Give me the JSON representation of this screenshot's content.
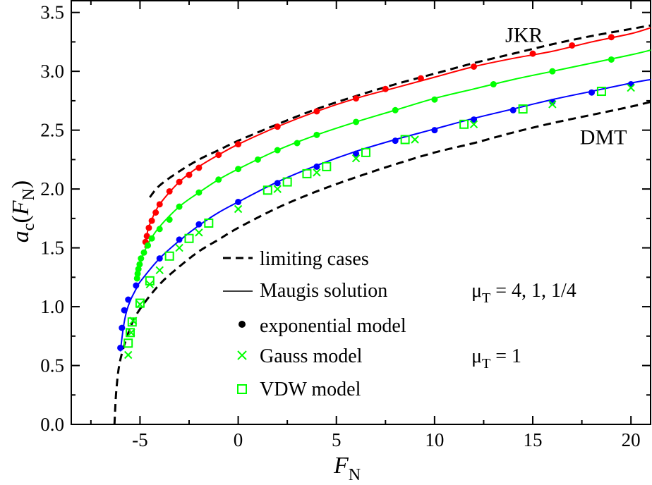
{
  "chart_data": {
    "type": "line",
    "title": "",
    "xlabel": {
      "main": "F",
      "sub": "N"
    },
    "ylabel": {
      "main": "a",
      "sub": "c",
      "arg_main": "F",
      "arg_sub": "N"
    },
    "xlim": [
      -8.5,
      21
    ],
    "ylim": [
      0.0,
      3.6
    ],
    "xticks": [
      -5,
      0,
      5,
      10,
      15,
      20
    ],
    "xtick_labels": [
      "-5",
      "0",
      "5",
      "10",
      "15",
      "20"
    ],
    "yticks": [
      0.0,
      0.5,
      1.0,
      1.5,
      2.0,
      2.5,
      3.0,
      3.5
    ],
    "ytick_labels": [
      "0.0",
      "0.5",
      "1.0",
      "1.5",
      "2.0",
      "2.5",
      "3.0",
      "3.5"
    ],
    "colors": {
      "red": "#ff0000",
      "green": "#00ff00",
      "blue": "#0000ff",
      "black": "#000000"
    },
    "annotations": [
      {
        "text": "JKR",
        "x": 13.6,
        "y": 3.25
      },
      {
        "text": "DMT",
        "x": 17.4,
        "y": 2.38
      }
    ],
    "limiting_curves": [
      {
        "name": "JKR",
        "points": [
          [
            -4.5,
            1.93
          ],
          [
            -4,
            2.03
          ],
          [
            -3,
            2.15
          ],
          [
            -2,
            2.25
          ],
          [
            -1,
            2.33
          ],
          [
            0,
            2.41
          ],
          [
            2,
            2.55
          ],
          [
            4,
            2.68
          ],
          [
            6,
            2.79
          ],
          [
            8,
            2.89
          ],
          [
            10,
            2.98
          ],
          [
            12,
            3.07
          ],
          [
            14,
            3.15
          ],
          [
            16,
            3.23
          ],
          [
            18,
            3.3
          ],
          [
            20,
            3.36
          ],
          [
            21,
            3.39
          ]
        ]
      },
      {
        "name": "DMT",
        "points": [
          [
            -6.3,
            0.0
          ],
          [
            -6.2,
            0.3
          ],
          [
            -6.0,
            0.55
          ],
          [
            -5.5,
            0.82
          ],
          [
            -5,
            0.98
          ],
          [
            -4,
            1.19
          ],
          [
            -3,
            1.34
          ],
          [
            -2,
            1.47
          ],
          [
            -1,
            1.57
          ],
          [
            0,
            1.67
          ],
          [
            2,
            1.84
          ],
          [
            4,
            1.98
          ],
          [
            6,
            2.1
          ],
          [
            8,
            2.21
          ],
          [
            10,
            2.31
          ],
          [
            12,
            2.39
          ],
          [
            14,
            2.48
          ],
          [
            16,
            2.56
          ],
          [
            18,
            2.63
          ],
          [
            20,
            2.7
          ],
          [
            21,
            2.74
          ]
        ]
      }
    ],
    "series": [
      {
        "name": "mu_T = 4",
        "color": "red",
        "curve": [
          [
            -4.75,
            1.5
          ],
          [
            -4.6,
            1.65
          ],
          [
            -4.4,
            1.74
          ],
          [
            -4,
            1.87
          ],
          [
            -3,
            2.06
          ],
          [
            -2,
            2.19
          ],
          [
            -1,
            2.29
          ],
          [
            0,
            2.38
          ],
          [
            2,
            2.53
          ],
          [
            4,
            2.66
          ],
          [
            6,
            2.77
          ],
          [
            8,
            2.86
          ],
          [
            10,
            2.95
          ],
          [
            12,
            3.04
          ],
          [
            14,
            3.11
          ],
          [
            16,
            3.17
          ],
          [
            18,
            3.25
          ],
          [
            20,
            3.32
          ],
          [
            21,
            3.37
          ]
        ],
        "exponential": [
          [
            -4.72,
            1.55
          ],
          [
            -4.65,
            1.6
          ],
          [
            -4.55,
            1.67
          ],
          [
            -4.4,
            1.73
          ],
          [
            -4.2,
            1.8
          ],
          [
            -4.0,
            1.87
          ],
          [
            -3.5,
            1.98
          ],
          [
            -3,
            2.06
          ],
          [
            -2.5,
            2.12
          ],
          [
            -2,
            2.18
          ],
          [
            -1,
            2.29
          ],
          [
            0,
            2.38
          ],
          [
            2,
            2.53
          ],
          [
            4,
            2.66
          ],
          [
            6,
            2.77
          ],
          [
            7.5,
            2.85
          ],
          [
            9.3,
            2.94
          ],
          [
            12,
            3.04
          ],
          [
            15,
            3.15
          ],
          [
            17,
            3.22
          ],
          [
            19,
            3.29
          ]
        ]
      },
      {
        "name": "mu_T = 1",
        "color": "green",
        "curve": [
          [
            -5.2,
            1.22
          ],
          [
            -5.1,
            1.3
          ],
          [
            -5.0,
            1.37
          ],
          [
            -4.8,
            1.46
          ],
          [
            -4.5,
            1.56
          ],
          [
            -4,
            1.68
          ],
          [
            -3,
            1.85
          ],
          [
            -2,
            1.97
          ],
          [
            -1,
            2.08
          ],
          [
            0,
            2.17
          ],
          [
            2,
            2.33
          ],
          [
            4,
            2.46
          ],
          [
            6,
            2.57
          ],
          [
            8,
            2.67
          ],
          [
            10,
            2.77
          ],
          [
            12,
            2.85
          ],
          [
            14,
            2.93
          ],
          [
            16,
            3.0
          ],
          [
            18,
            3.07
          ],
          [
            20,
            3.14
          ],
          [
            21,
            3.18
          ]
        ],
        "exponential": [
          [
            -5.15,
            1.24
          ],
          [
            -5.12,
            1.28
          ],
          [
            -5.08,
            1.32
          ],
          [
            -5.02,
            1.36
          ],
          [
            -4.95,
            1.41
          ],
          [
            -4.8,
            1.46
          ],
          [
            -4.6,
            1.52
          ],
          [
            -4.4,
            1.58
          ],
          [
            -4.0,
            1.66
          ],
          [
            -3.5,
            1.74
          ],
          [
            -3,
            1.85
          ],
          [
            -2,
            1.97
          ],
          [
            -1,
            2.08
          ],
          [
            0,
            2.17
          ],
          [
            1,
            2.25
          ],
          [
            2,
            2.33
          ],
          [
            3,
            2.39
          ],
          [
            4,
            2.46
          ],
          [
            6,
            2.57
          ],
          [
            8,
            2.67
          ],
          [
            10,
            2.76
          ],
          [
            13,
            2.89
          ],
          [
            16,
            3.0
          ],
          [
            19,
            3.1
          ]
        ]
      },
      {
        "name": "mu_T = 1/4",
        "color": "blue",
        "curve": [
          [
            -6.0,
            0.62
          ],
          [
            -5.85,
            0.82
          ],
          [
            -5.7,
            0.95
          ],
          [
            -5.5,
            1.05
          ],
          [
            -5.2,
            1.15
          ],
          [
            -5,
            1.21
          ],
          [
            -4,
            1.41
          ],
          [
            -3,
            1.56
          ],
          [
            -2,
            1.69
          ],
          [
            -1,
            1.8
          ],
          [
            0,
            1.89
          ],
          [
            2,
            2.06
          ],
          [
            4,
            2.2
          ],
          [
            6,
            2.32
          ],
          [
            8,
            2.42
          ],
          [
            10,
            2.51
          ],
          [
            12,
            2.6
          ],
          [
            14,
            2.68
          ],
          [
            16,
            2.76
          ],
          [
            18,
            2.83
          ],
          [
            20,
            2.9
          ],
          [
            21,
            2.93
          ]
        ],
        "exponential": [
          [
            -6.0,
            0.65
          ],
          [
            -5.92,
            0.82
          ],
          [
            -5.8,
            0.97
          ],
          [
            -5.6,
            1.06
          ],
          [
            -5.2,
            1.18
          ],
          [
            -4,
            1.41
          ],
          [
            -3,
            1.57
          ],
          [
            -2,
            1.7
          ],
          [
            0,
            1.89
          ],
          [
            2,
            2.05
          ],
          [
            4,
            2.19
          ],
          [
            6,
            2.3
          ],
          [
            8,
            2.41
          ],
          [
            10,
            2.5
          ],
          [
            12,
            2.59
          ],
          [
            14,
            2.67
          ],
          [
            16,
            2.74
          ],
          [
            18,
            2.82
          ],
          [
            20,
            2.89
          ]
        ]
      }
    ],
    "gauss_mu1": [
      [
        -5.6,
        0.59
      ],
      [
        -5.45,
        0.78
      ],
      [
        -5.35,
        0.88
      ],
      [
        -5.0,
        1.02
      ],
      [
        -4.5,
        1.19
      ],
      [
        -4.0,
        1.31
      ],
      [
        -3.0,
        1.5
      ],
      [
        -2.0,
        1.63
      ],
      [
        0,
        1.83
      ],
      [
        2,
        2.0
      ],
      [
        4,
        2.14
      ],
      [
        6,
        2.26
      ],
      [
        9,
        2.42
      ],
      [
        12,
        2.55
      ],
      [
        16,
        2.72
      ],
      [
        20,
        2.86
      ]
    ],
    "vdw_mu1": [
      [
        -5.6,
        0.69
      ],
      [
        -5.5,
        0.78
      ],
      [
        -5.4,
        0.87
      ],
      [
        -5.0,
        1.03
      ],
      [
        -4.5,
        1.22
      ],
      [
        -3.5,
        1.43
      ],
      [
        -2.5,
        1.58
      ],
      [
        -1.5,
        1.71
      ],
      [
        1.5,
        1.99
      ],
      [
        2.5,
        2.06
      ],
      [
        3.5,
        2.13
      ],
      [
        4.5,
        2.19
      ],
      [
        6.5,
        2.31
      ],
      [
        8.5,
        2.42
      ],
      [
        11.5,
        2.55
      ],
      [
        14.5,
        2.68
      ],
      [
        18.5,
        2.83
      ]
    ],
    "legend": [
      {
        "type": "dash",
        "label": "limiting cases"
      },
      {
        "type": "solid",
        "label": "Maugis solution"
      },
      {
        "type": "dot",
        "label": "exponential model"
      },
      {
        "type": "cross",
        "label": "Gauss model"
      },
      {
        "type": "square",
        "label": "VDW model"
      }
    ],
    "legend_notes": [
      {
        "mu": "μ",
        "sub": "T",
        "rest": " = 4, 1, 1/4"
      },
      {
        "mu": "μ",
        "sub": "T",
        "rest": " = 1"
      }
    ]
  }
}
